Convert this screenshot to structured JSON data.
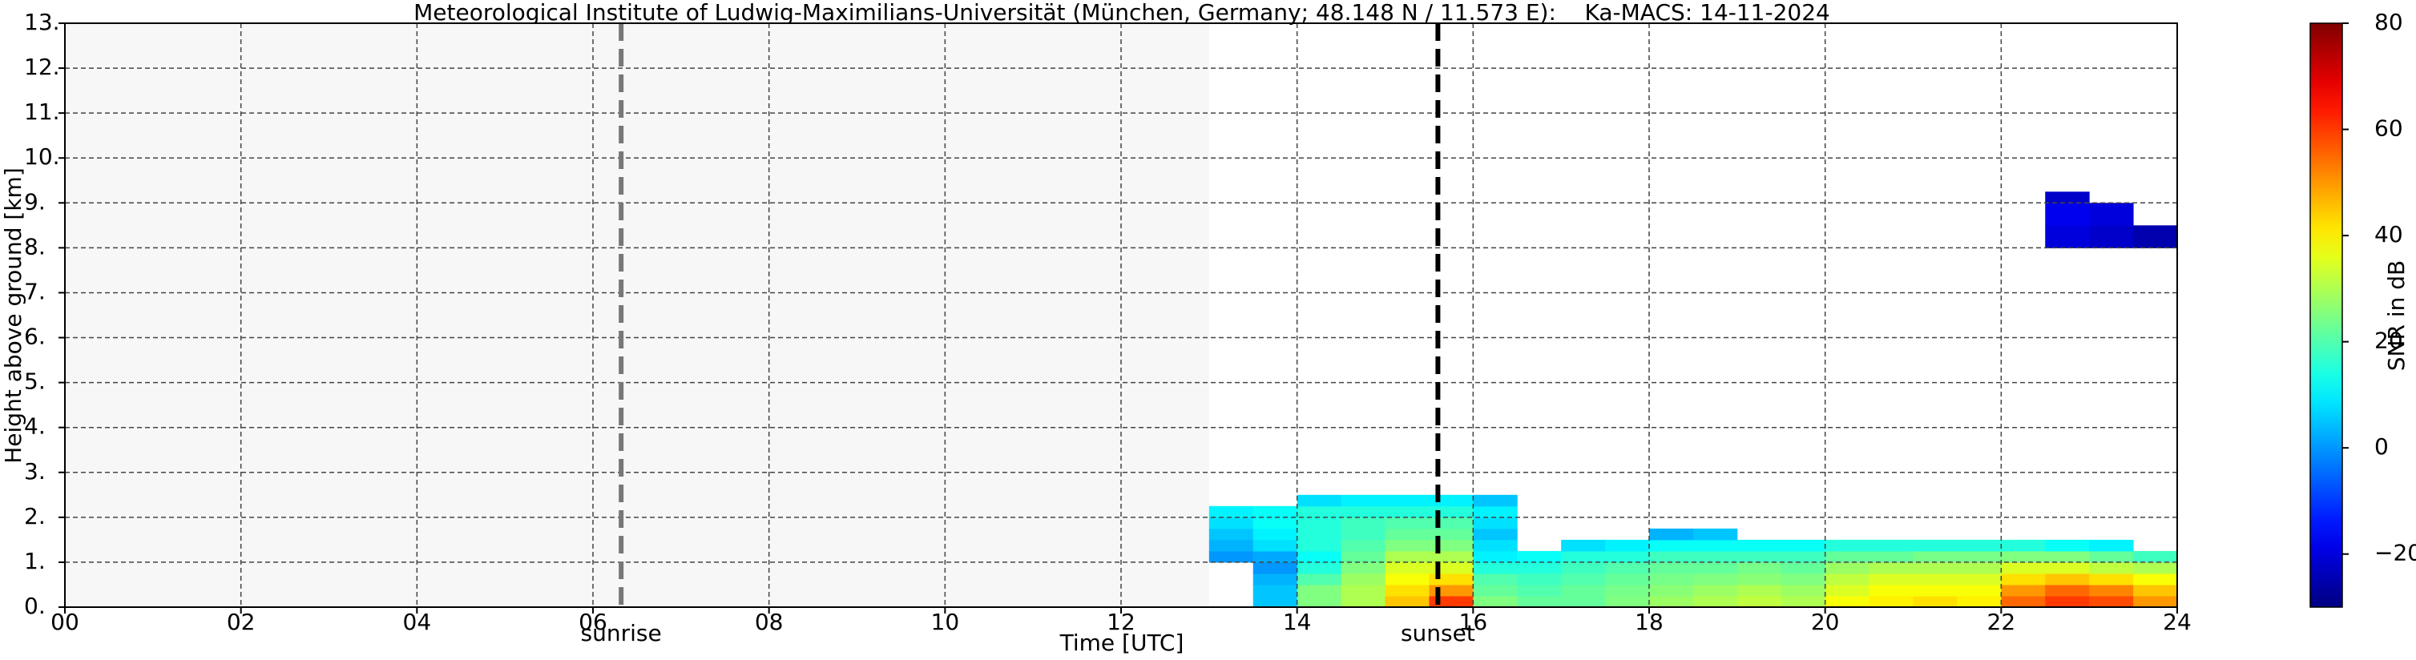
{
  "chart_data": {
    "type": "heatmap",
    "title": "Meteorological Institute of Ludwig-Maximilians-Universität (München, Germany; 48.148 N / 11.573 E):    Ka-MACS: 14-11-2024",
    "xlabel": "Time [UTC]",
    "ylabel": "Height above ground [km]",
    "xlim": [
      0,
      24
    ],
    "xticks": [
      {
        "value": 0,
        "label": "00"
      },
      {
        "value": 2,
        "label": "02"
      },
      {
        "value": 4,
        "label": "04"
      },
      {
        "value": 6,
        "label": "06"
      },
      {
        "value": 8,
        "label": "08"
      },
      10,
      12,
      14,
      16,
      18,
      20,
      22,
      24
    ],
    "ylim": [
      0,
      13
    ],
    "yticks": [
      {
        "value": 0,
        "label": "0."
      },
      {
        "value": 1,
        "label": "1."
      },
      {
        "value": 2,
        "label": "2."
      },
      {
        "value": 3,
        "label": "3."
      },
      {
        "value": 4,
        "label": "4."
      },
      {
        "value": 5,
        "label": "5."
      },
      {
        "value": 6,
        "label": "6."
      },
      {
        "value": 7,
        "label": "7."
      },
      {
        "value": 8,
        "label": "8."
      },
      {
        "value": 9,
        "label": "9."
      },
      {
        "value": 10,
        "label": "10."
      },
      {
        "value": 11,
        "label": "11."
      },
      {
        "value": 12,
        "label": "12."
      },
      {
        "value": 13,
        "label": "13."
      }
    ],
    "grid": true,
    "x": [
      13,
      13.5,
      14,
      14.5,
      15,
      15.5,
      16,
      16.5,
      17,
      17.5,
      18,
      18.5,
      19,
      19.5,
      20,
      20.5,
      21,
      21.5,
      22,
      22.5,
      23,
      23.5,
      24
    ],
    "y": [
      0,
      0.25,
      0.5,
      0.75,
      1,
      1.25,
      1.5,
      1.75,
      2,
      2.25,
      2.5,
      8,
      8.5,
      9,
      9.25
    ],
    "z": [
      [
        null,
        5,
        25,
        30,
        45,
        60,
        25,
        22,
        22,
        25,
        28,
        30,
        32,
        30,
        38,
        40,
        42,
        40,
        55,
        60,
        58,
        50
      ],
      [
        null,
        5,
        25,
        30,
        42,
        50,
        22,
        20,
        22,
        24,
        26,
        28,
        30,
        28,
        35,
        38,
        38,
        38,
        50,
        55,
        52,
        45
      ],
      [
        null,
        3,
        20,
        28,
        38,
        42,
        20,
        18,
        20,
        22,
        24,
        25,
        26,
        25,
        32,
        35,
        35,
        35,
        42,
        45,
        42,
        38
      ],
      [
        null,
        0,
        15,
        25,
        35,
        35,
        15,
        15,
        18,
        20,
        22,
        22,
        24,
        22,
        28,
        30,
        30,
        30,
        35,
        35,
        32,
        30
      ],
      [
        0,
        2,
        12,
        22,
        30,
        30,
        10,
        12,
        15,
        15,
        18,
        18,
        18,
        18,
        22,
        22,
        24,
        24,
        25,
        25,
        22,
        18
      ],
      [
        3,
        8,
        15,
        20,
        25,
        25,
        8,
        null,
        8,
        10,
        12,
        12,
        12,
        12,
        15,
        15,
        15,
        15,
        15,
        12,
        10,
        null
      ],
      [
        5,
        10,
        15,
        18,
        22,
        22,
        5,
        null,
        null,
        null,
        3,
        5,
        null,
        null,
        null,
        null,
        null,
        null,
        null,
        null,
        null,
        null
      ],
      [
        8,
        12,
        15,
        18,
        20,
        20,
        8,
        null,
        null,
        null,
        null,
        null,
        null,
        null,
        null,
        null,
        null,
        null,
        null,
        null,
        null,
        null
      ],
      [
        10,
        12,
        15,
        15,
        15,
        15,
        10,
        null,
        null,
        null,
        null,
        null,
        null,
        null,
        null,
        null,
        null,
        null,
        null,
        null,
        null,
        null
      ],
      [
        null,
        null,
        8,
        10,
        10,
        10,
        5,
        null,
        null,
        null,
        null,
        null,
        null,
        null,
        null,
        null,
        null,
        null,
        null,
        null,
        null,
        null
      ],
      [
        null,
        null,
        null,
        null,
        null,
        null,
        null,
        null,
        null,
        null,
        null,
        null,
        null,
        null,
        null,
        null,
        null,
        null,
        null,
        null,
        null,
        null
      ],
      [
        null,
        null,
        null,
        null,
        null,
        null,
        null,
        null,
        null,
        null,
        null,
        null,
        null,
        null,
        null,
        null,
        null,
        null,
        null,
        -20,
        -22,
        -25
      ],
      [
        null,
        null,
        null,
        null,
        null,
        null,
        null,
        null,
        null,
        null,
        null,
        null,
        null,
        null,
        null,
        null,
        null,
        null,
        null,
        -18,
        -20,
        null
      ],
      [
        null,
        null,
        null,
        null,
        null,
        null,
        null,
        null,
        null,
        null,
        null,
        null,
        null,
        null,
        null,
        null,
        null,
        null,
        null,
        -22,
        null,
        null
      ]
    ],
    "colormap": "jet",
    "clim": [
      -30,
      80
    ],
    "cticks": [
      {
        "value": -20,
        "label": "−20"
      },
      0,
      20,
      40,
      60,
      80
    ],
    "clabel": "SNR in dB",
    "annotations": [
      {
        "text": "sunrise",
        "x": 6.32,
        "color": "#777777"
      },
      {
        "text": "sunset",
        "x": 15.6,
        "color": "#000000"
      }
    ]
  }
}
